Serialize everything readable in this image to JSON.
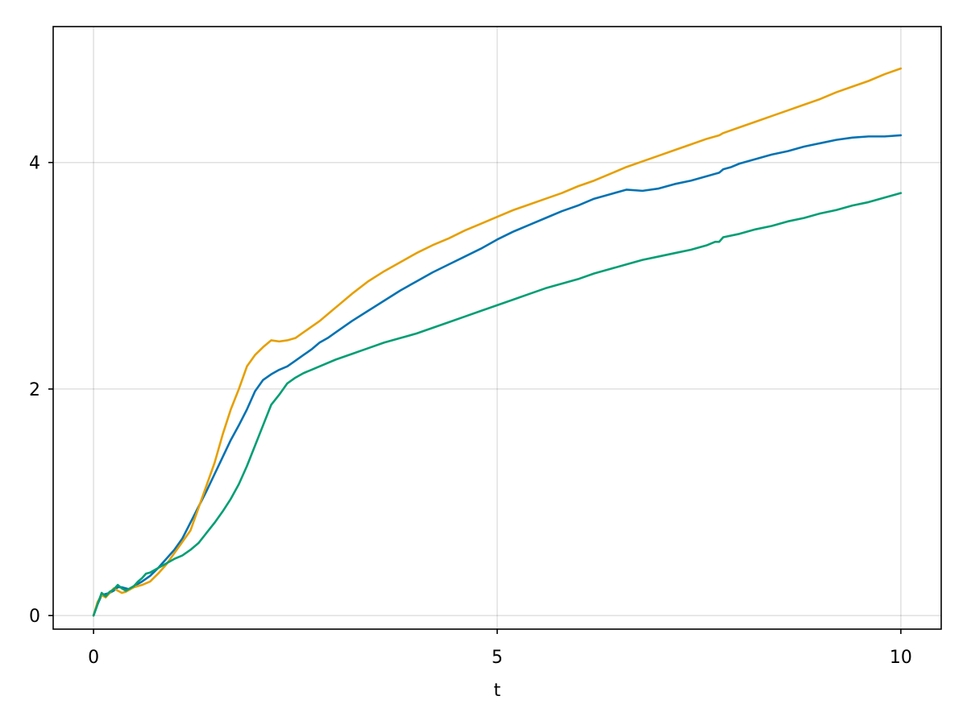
{
  "chart_data": {
    "type": "line",
    "title": "",
    "xlabel": "t",
    "ylabel": "",
    "xlim": [
      -0.5,
      10.5
    ],
    "ylim": [
      -0.12,
      5.2
    ],
    "xticks": [
      0,
      5,
      10
    ],
    "yticks": [
      0,
      2,
      4
    ],
    "grid": true,
    "legend": "none",
    "series": [
      {
        "color": "#0072b2",
        "x": [
          0,
          0.05,
          0.1,
          0.15,
          0.2,
          0.25,
          0.3,
          0.35,
          0.4,
          0.45,
          0.5,
          0.6,
          0.7,
          0.8,
          0.9,
          1.0,
          1.1,
          1.2,
          1.3,
          1.4,
          1.5,
          1.6,
          1.7,
          1.8,
          1.9,
          2.0,
          2.1,
          2.2,
          2.3,
          2.4,
          2.5,
          2.6,
          2.7,
          2.8,
          2.9,
          3.0,
          3.2,
          3.4,
          3.6,
          3.8,
          4.0,
          4.2,
          4.4,
          4.6,
          4.8,
          5.0,
          5.2,
          5.4,
          5.6,
          5.8,
          6.0,
          6.2,
          6.4,
          6.6,
          6.8,
          7.0,
          7.2,
          7.4,
          7.6,
          7.75,
          7.8,
          7.9,
          8.0,
          8.2,
          8.4,
          8.6,
          8.8,
          9.0,
          9.2,
          9.4,
          9.6,
          9.8,
          10.0
        ],
        "y": [
          0,
          0.1,
          0.18,
          0.19,
          0.2,
          0.22,
          0.25,
          0.25,
          0.24,
          0.23,
          0.26,
          0.3,
          0.35,
          0.42,
          0.5,
          0.58,
          0.68,
          0.82,
          0.96,
          1.1,
          1.25,
          1.4,
          1.55,
          1.68,
          1.82,
          1.98,
          2.08,
          2.13,
          2.17,
          2.2,
          2.25,
          2.3,
          2.35,
          2.41,
          2.45,
          2.5,
          2.6,
          2.69,
          2.78,
          2.87,
          2.95,
          3.03,
          3.1,
          3.17,
          3.24,
          3.32,
          3.39,
          3.45,
          3.51,
          3.57,
          3.62,
          3.68,
          3.72,
          3.76,
          3.75,
          3.77,
          3.81,
          3.84,
          3.88,
          3.91,
          3.94,
          3.96,
          3.99,
          4.03,
          4.07,
          4.1,
          4.14,
          4.17,
          4.2,
          4.22,
          4.23,
          4.23,
          4.24
        ]
      },
      {
        "color": "#e69f00",
        "x": [
          0,
          0.05,
          0.1,
          0.15,
          0.2,
          0.25,
          0.3,
          0.35,
          0.4,
          0.45,
          0.5,
          0.6,
          0.7,
          0.8,
          0.9,
          1.0,
          1.1,
          1.2,
          1.3,
          1.4,
          1.5,
          1.6,
          1.7,
          1.8,
          1.9,
          2.0,
          2.1,
          2.2,
          2.3,
          2.4,
          2.5,
          2.6,
          2.7,
          2.8,
          2.9,
          3.0,
          3.2,
          3.4,
          3.6,
          3.8,
          4.0,
          4.2,
          4.4,
          4.6,
          4.8,
          5.0,
          5.2,
          5.4,
          5.6,
          5.8,
          6.0,
          6.2,
          6.4,
          6.6,
          6.8,
          7.0,
          7.2,
          7.4,
          7.6,
          7.75,
          7.8,
          8.0,
          8.2,
          8.4,
          8.6,
          8.8,
          9.0,
          9.2,
          9.4,
          9.6,
          9.8,
          10.0
        ],
        "y": [
          0,
          0.12,
          0.18,
          0.16,
          0.2,
          0.24,
          0.22,
          0.2,
          0.21,
          0.23,
          0.25,
          0.27,
          0.3,
          0.37,
          0.45,
          0.55,
          0.65,
          0.75,
          0.95,
          1.15,
          1.35,
          1.6,
          1.82,
          2.0,
          2.2,
          2.3,
          2.37,
          2.43,
          2.42,
          2.43,
          2.45,
          2.5,
          2.55,
          2.6,
          2.66,
          2.72,
          2.84,
          2.95,
          3.04,
          3.12,
          3.2,
          3.27,
          3.33,
          3.4,
          3.46,
          3.52,
          3.58,
          3.63,
          3.68,
          3.73,
          3.79,
          3.84,
          3.9,
          3.96,
          4.01,
          4.06,
          4.11,
          4.16,
          4.21,
          4.24,
          4.26,
          4.31,
          4.36,
          4.41,
          4.46,
          4.51,
          4.56,
          4.62,
          4.67,
          4.72,
          4.78,
          4.83
        ]
      },
      {
        "color": "#009e73",
        "x": [
          0,
          0.05,
          0.1,
          0.15,
          0.2,
          0.25,
          0.3,
          0.35,
          0.4,
          0.45,
          0.5,
          0.55,
          0.6,
          0.65,
          0.7,
          0.8,
          0.9,
          1.0,
          1.1,
          1.2,
          1.3,
          1.4,
          1.5,
          1.6,
          1.7,
          1.8,
          1.9,
          2.0,
          2.1,
          2.2,
          2.3,
          2.4,
          2.5,
          2.6,
          2.7,
          2.8,
          3.0,
          3.2,
          3.4,
          3.6,
          3.8,
          4.0,
          4.2,
          4.4,
          4.6,
          4.8,
          5.0,
          5.2,
          5.4,
          5.6,
          5.8,
          6.0,
          6.2,
          6.4,
          6.6,
          6.8,
          7.0,
          7.2,
          7.4,
          7.6,
          7.7,
          7.75,
          7.8,
          8.0,
          8.2,
          8.4,
          8.6,
          8.8,
          9.0,
          9.2,
          9.4,
          9.6,
          9.8,
          10.0
        ],
        "y": [
          0,
          0.1,
          0.2,
          0.17,
          0.21,
          0.23,
          0.27,
          0.24,
          0.22,
          0.24,
          0.26,
          0.3,
          0.33,
          0.37,
          0.38,
          0.42,
          0.46,
          0.5,
          0.53,
          0.58,
          0.64,
          0.73,
          0.82,
          0.92,
          1.03,
          1.16,
          1.32,
          1.5,
          1.68,
          1.86,
          1.95,
          2.05,
          2.1,
          2.14,
          2.17,
          2.2,
          2.26,
          2.31,
          2.36,
          2.41,
          2.45,
          2.49,
          2.54,
          2.59,
          2.64,
          2.69,
          2.74,
          2.79,
          2.84,
          2.89,
          2.93,
          2.97,
          3.02,
          3.06,
          3.1,
          3.14,
          3.17,
          3.2,
          3.23,
          3.27,
          3.3,
          3.3,
          3.34,
          3.37,
          3.41,
          3.44,
          3.48,
          3.51,
          3.55,
          3.58,
          3.62,
          3.65,
          3.69,
          3.73
        ]
      }
    ]
  }
}
